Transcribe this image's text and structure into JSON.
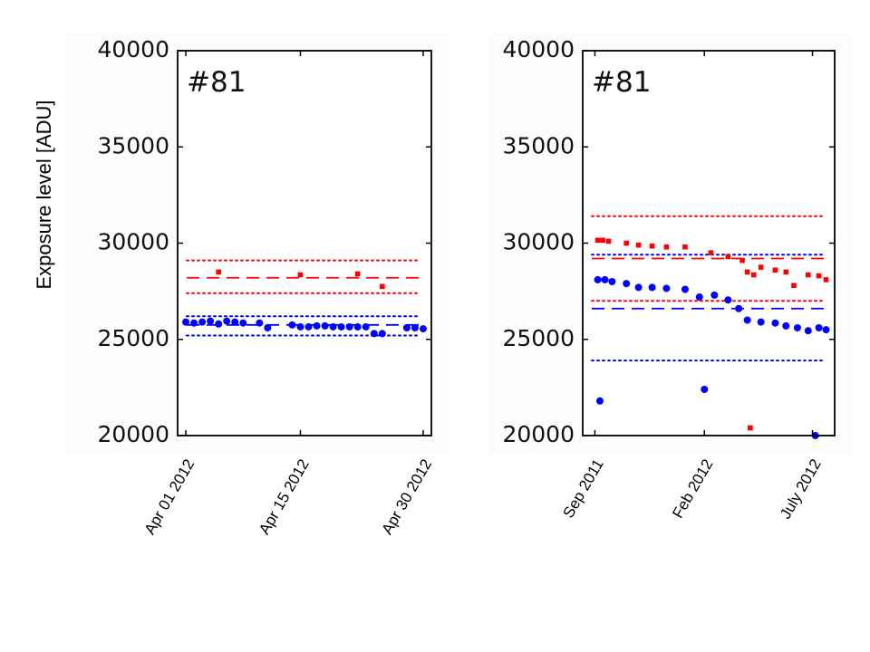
{
  "figure": {
    "ylabel": "Exposure level [ADU]"
  },
  "chart_data": [
    {
      "type": "scatter",
      "panel_label": "#81",
      "title": "",
      "xlabel": "",
      "ylabel": "Exposure level [ADU]",
      "ylim": [
        20000,
        40000
      ],
      "yticks": [
        20000,
        25000,
        30000,
        35000,
        40000
      ],
      "xticks": [
        {
          "label": "Apr 01 2012",
          "date": "2012-04-01"
        },
        {
          "label": "Apr 15 2012",
          "date": "2012-04-15"
        },
        {
          "label": "Apr 30 2012",
          "date": "2012-04-30"
        }
      ],
      "xlim": [
        "2012-03-31",
        "2012-05-01"
      ],
      "colors": {
        "red": "#ff0000",
        "blue": "#0000ff"
      },
      "series": [
        {
          "color": "red",
          "marker": "square",
          "points": [
            {
              "x": "2012-04-05",
              "y": 28500
            },
            {
              "x": "2012-04-15",
              "y": 28350
            },
            {
              "x": "2012-04-22",
              "y": 28400
            },
            {
              "x": "2012-04-25",
              "y": 27750
            }
          ]
        },
        {
          "color": "blue",
          "marker": "circle",
          "points": [
            {
              "x": "2012-04-01",
              "y": 25900
            },
            {
              "x": "2012-04-02",
              "y": 25850
            },
            {
              "x": "2012-04-03",
              "y": 25900
            },
            {
              "x": "2012-04-04",
              "y": 25950
            },
            {
              "x": "2012-04-05",
              "y": 25800
            },
            {
              "x": "2012-04-06",
              "y": 25950
            },
            {
              "x": "2012-04-07",
              "y": 25900
            },
            {
              "x": "2012-04-08",
              "y": 25850
            },
            {
              "x": "2012-04-10",
              "y": 25850
            },
            {
              "x": "2012-04-11",
              "y": 25600
            },
            {
              "x": "2012-04-14",
              "y": 25750
            },
            {
              "x": "2012-04-15",
              "y": 25650
            },
            {
              "x": "2012-04-16",
              "y": 25650
            },
            {
              "x": "2012-04-17",
              "y": 25700
            },
            {
              "x": "2012-04-18",
              "y": 25700
            },
            {
              "x": "2012-04-19",
              "y": 25650
            },
            {
              "x": "2012-04-20",
              "y": 25650
            },
            {
              "x": "2012-04-21",
              "y": 25650
            },
            {
              "x": "2012-04-22",
              "y": 25650
            },
            {
              "x": "2012-04-23",
              "y": 25650
            },
            {
              "x": "2012-04-24",
              "y": 25300
            },
            {
              "x": "2012-04-25",
              "y": 25300
            },
            {
              "x": "2012-04-28",
              "y": 25600
            },
            {
              "x": "2012-04-29",
              "y": 25600
            },
            {
              "x": "2012-04-30",
              "y": 25550
            }
          ]
        }
      ],
      "reference_lines": [
        {
          "color": "red",
          "style": "dotted",
          "y": 29100
        },
        {
          "color": "red",
          "style": "dashed",
          "y": 28200
        },
        {
          "color": "red",
          "style": "dotted",
          "y": 27400
        },
        {
          "color": "blue",
          "style": "dotted",
          "y": 26200
        },
        {
          "color": "blue",
          "style": "dashed",
          "y": 25750
        },
        {
          "color": "blue",
          "style": "dotted",
          "y": 25200
        }
      ]
    },
    {
      "type": "scatter",
      "panel_label": "#81",
      "title": "",
      "xlabel": "",
      "ylabel": "",
      "ylim": [
        20000,
        40000
      ],
      "yticks": [
        20000,
        25000,
        30000,
        35000,
        40000
      ],
      "xticks": [
        {
          "label": "Sep 2011",
          "date": "2011-09-01"
        },
        {
          "label": "Feb 2012",
          "date": "2012-02-01"
        },
        {
          "label": "July 2012",
          "date": "2012-07-01"
        }
      ],
      "xlim": [
        "2011-08-15",
        "2012-08-01"
      ],
      "colors": {
        "red": "#ff0000",
        "blue": "#0000ff"
      },
      "series": [
        {
          "color": "red",
          "marker": "square",
          "points": [
            {
              "x": "2011-09-05",
              "y": 30150
            },
            {
              "x": "2011-09-12",
              "y": 30150
            },
            {
              "x": "2011-09-20",
              "y": 30100
            },
            {
              "x": "2011-10-15",
              "y": 30000
            },
            {
              "x": "2011-11-01",
              "y": 29900
            },
            {
              "x": "2011-11-20",
              "y": 29850
            },
            {
              "x": "2011-12-10",
              "y": 29800
            },
            {
              "x": "2012-01-05",
              "y": 29800
            },
            {
              "x": "2012-02-10",
              "y": 29500
            },
            {
              "x": "2012-03-05",
              "y": 29300
            },
            {
              "x": "2012-03-25",
              "y": 29100
            },
            {
              "x": "2012-04-01",
              "y": 28500
            },
            {
              "x": "2012-04-10",
              "y": 28350
            },
            {
              "x": "2012-04-20",
              "y": 28750
            },
            {
              "x": "2012-05-10",
              "y": 28600
            },
            {
              "x": "2012-05-25",
              "y": 28500
            },
            {
              "x": "2012-06-05",
              "y": 27800
            },
            {
              "x": "2012-06-25",
              "y": 28350
            },
            {
              "x": "2012-07-10",
              "y": 28300
            },
            {
              "x": "2012-07-20",
              "y": 28100
            },
            {
              "x": "2012-04-05",
              "y": 20400
            }
          ]
        },
        {
          "color": "blue",
          "marker": "circle",
          "points": [
            {
              "x": "2011-09-05",
              "y": 28100
            },
            {
              "x": "2011-09-15",
              "y": 28100
            },
            {
              "x": "2011-09-25",
              "y": 28000
            },
            {
              "x": "2011-10-15",
              "y": 27900
            },
            {
              "x": "2011-11-01",
              "y": 27700
            },
            {
              "x": "2011-11-20",
              "y": 27700
            },
            {
              "x": "2011-12-10",
              "y": 27650
            },
            {
              "x": "2012-01-05",
              "y": 27600
            },
            {
              "x": "2012-01-25",
              "y": 27200
            },
            {
              "x": "2012-02-15",
              "y": 27300
            },
            {
              "x": "2012-03-05",
              "y": 27050
            },
            {
              "x": "2012-03-20",
              "y": 26600
            },
            {
              "x": "2012-04-01",
              "y": 26000
            },
            {
              "x": "2012-04-20",
              "y": 25900
            },
            {
              "x": "2012-05-10",
              "y": 25850
            },
            {
              "x": "2012-05-25",
              "y": 25700
            },
            {
              "x": "2012-06-10",
              "y": 25600
            },
            {
              "x": "2012-06-25",
              "y": 25450
            },
            {
              "x": "2012-07-10",
              "y": 25600
            },
            {
              "x": "2012-07-20",
              "y": 25500
            },
            {
              "x": "2011-09-08",
              "y": 21800
            },
            {
              "x": "2012-02-01",
              "y": 22400
            },
            {
              "x": "2012-07-05",
              "y": 20000
            }
          ]
        }
      ],
      "reference_lines": [
        {
          "color": "red",
          "style": "dotted",
          "y": 31400
        },
        {
          "color": "blue",
          "style": "dotted",
          "y": 29400
        },
        {
          "color": "red",
          "style": "dashed",
          "y": 29200
        },
        {
          "color": "red",
          "style": "dotted",
          "y": 27000
        },
        {
          "color": "blue",
          "style": "dashed",
          "y": 26600
        },
        {
          "color": "blue",
          "style": "dotted",
          "y": 23900
        }
      ]
    }
  ]
}
